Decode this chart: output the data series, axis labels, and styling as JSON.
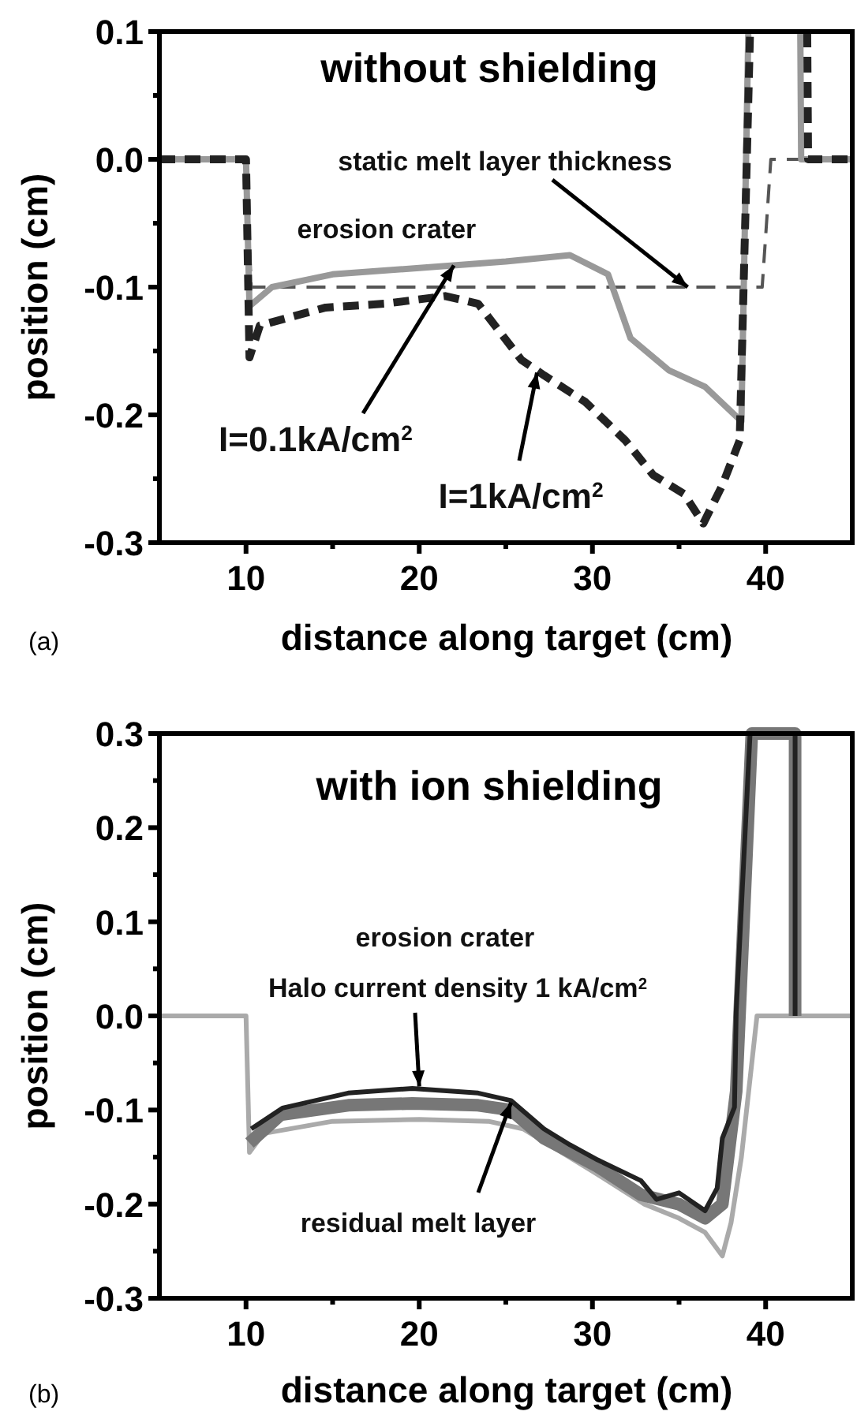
{
  "chart_data": [
    {
      "type": "line",
      "title": "without shielding",
      "xlabel": "distance along target (cm)",
      "ylabel": "position (cm)",
      "xlim": [
        5,
        45
      ],
      "ylim": [
        -0.3,
        0.1
      ],
      "xticks": [
        10,
        {
          "value": 15,
          "label": null
        },
        20,
        {
          "value": 25,
          "label": null
        },
        30,
        {
          "value": 35,
          "label": null
        },
        40
      ],
      "yticks": [
        -0.3,
        {
          "value": -0.25,
          "label": null
        },
        -0.2,
        {
          "value": -0.15,
          "label": null
        },
        -0.1,
        {
          "value": -0.05,
          "label": null
        },
        "0.0",
        {
          "value": 0.05,
          "label": null
        },
        0.1
      ],
      "grid": false,
      "series": [
        {
          "color": "#555555",
          "line_style": "dashed",
          "x": [
            5,
            10,
            10.3,
            39.8,
            40.3,
            45
          ],
          "values": [
            0,
            0,
            -0.1,
            -0.1,
            0,
            0
          ]
        },
        {
          "color": "#999999",
          "line_style": "solid",
          "x": [
            5,
            10,
            10.2,
            11.5,
            15,
            20,
            25,
            28.7,
            30.9,
            32.2,
            34.4,
            36.5,
            38.6,
            39,
            39.5,
            42,
            42.05,
            45
          ],
          "values": [
            0,
            0,
            -0.115,
            -0.1,
            -0.09,
            -0.085,
            -0.08,
            -0.075,
            -0.09,
            -0.14,
            -0.165,
            -0.178,
            -0.205,
            0.1,
            null,
            0.1,
            0,
            0
          ]
        },
        {
          "color": "#222222",
          "line_style": "dashed",
          "x": [
            5,
            10,
            10.2,
            10.8,
            14.6,
            18,
            21.5,
            23.4,
            25.9,
            27.2,
            29.6,
            31.9,
            33.5,
            35.3,
            36.4,
            37.5,
            38.5,
            39.1,
            40,
            42.4,
            42.45,
            45
          ],
          "values": [
            0,
            0,
            -0.155,
            -0.13,
            -0.116,
            -0.113,
            -0.107,
            -0.113,
            -0.157,
            -0.169,
            -0.19,
            -0.22,
            -0.247,
            -0.262,
            -0.285,
            -0.255,
            -0.22,
            0.1,
            null,
            0.1,
            0,
            0
          ]
        }
      ],
      "annotations": [
        {
          "text": "static melt layer thickness",
          "x": 35.5,
          "y": -0.1
        },
        "erosion crater",
        {
          "text": "I=0.1kA/cm$^{2}$",
          "x": 22,
          "y": -0.083
        },
        {
          "text": "I=1kA/cm$^{2}$",
          "x": 26.8,
          "y": -0.167
        },
        "(a)"
      ]
    },
    {
      "type": "line",
      "title": "with ion shielding",
      "xlabel": "distance along target (cm)",
      "ylabel": "position (cm)",
      "xlim": [
        5,
        45
      ],
      "ylim": [
        -0.3,
        0.3
      ],
      "xticks": [
        10,
        {
          "value": 15,
          "label": null
        },
        20,
        {
          "value": 25,
          "label": null
        },
        30,
        {
          "value": 35,
          "label": null
        },
        40
      ],
      "yticks": [
        -0.3,
        {
          "value": -0.25,
          "label": null
        },
        -0.2,
        {
          "value": -0.15,
          "label": null
        },
        -0.1,
        {
          "value": -0.05,
          "label": null
        },
        "0.0",
        {
          "value": 0.05,
          "label": null
        },
        0.1,
        {
          "value": 0.15,
          "label": null
        },
        0.2,
        {
          "value": 0.25,
          "label": null
        },
        0.3
      ],
      "grid": false,
      "series": [
        {
          "color": "#aaaaaa",
          "line_style": "solid",
          "x": [
            5,
            10,
            10.2,
            11,
            15,
            20,
            24,
            26,
            30,
            33,
            35,
            36.5,
            37.5,
            38,
            38.6,
            39.2,
            39.5,
            45
          ],
          "values": [
            0,
            0,
            -0.145,
            -0.125,
            -0.112,
            -0.11,
            -0.112,
            -0.12,
            -0.165,
            -0.2,
            -0.215,
            -0.23,
            -0.255,
            -0.22,
            -0.15,
            -0.05,
            0,
            0
          ]
        },
        {
          "color": "#777777",
          "line_style": "solid",
          "x": [
            10.2,
            12,
            15.9,
            19.6,
            23.4,
            25.3,
            27.2,
            30.3,
            32.8,
            35,
            36.5,
            37.5,
            38.3,
            39.2,
            41.7,
            41.7
          ],
          "values": [
            -0.135,
            -0.105,
            -0.095,
            -0.093,
            -0.095,
            -0.1,
            -0.13,
            -0.16,
            -0.19,
            -0.2,
            -0.215,
            -0.2,
            -0.08,
            0.3,
            0.3,
            0
          ]
        },
        {
          "color": "#222222",
          "line_style": "solid",
          "x": [
            10.3,
            12.1,
            15.9,
            19.6,
            23.4,
            25.3,
            27.2,
            28.7,
            30.3,
            32.8,
            33.7,
            35,
            36.5,
            37.2,
            37.5,
            38.2,
            38.3,
            39.1,
            41.7,
            41.7
          ],
          "values": [
            -0.12,
            -0.098,
            -0.082,
            -0.077,
            -0.082,
            -0.09,
            -0.12,
            -0.137,
            -0.153,
            -0.175,
            -0.195,
            -0.188,
            -0.207,
            -0.183,
            -0.13,
            -0.097,
            0.005,
            0.3,
            0.3,
            0
          ]
        }
      ],
      "annotations": [
        "erosion crater",
        {
          "text": "Halo current density 1 kA/cm$^{2}$",
          "x": 20,
          "y": -0.075
        },
        {
          "text": "residual melt layer",
          "x": 25.3,
          "y": -0.092
        },
        "(b)"
      ]
    }
  ]
}
